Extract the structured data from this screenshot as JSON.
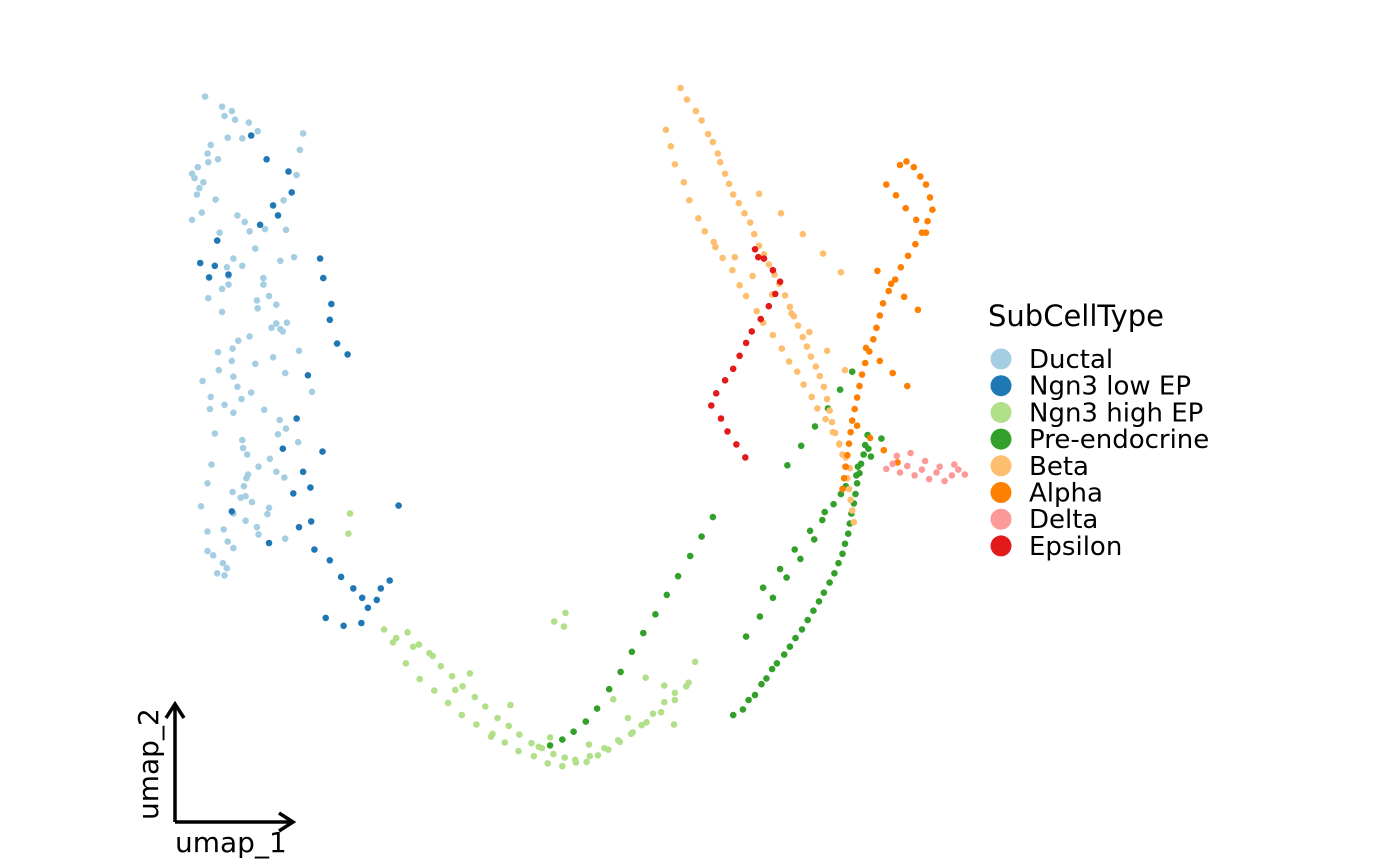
{
  "chart_data": {
    "type": "scatter",
    "title": "",
    "xlabel": "umap_1",
    "ylabel": "umap_2",
    "xlim": [
      0,
      100
    ],
    "ylim": [
      0,
      100
    ],
    "grid": false,
    "legend": {
      "title": "SubCellType",
      "placement": "right"
    },
    "series": [
      {
        "name": "Ductal",
        "color": "#A6CEE3",
        "x": [
          10.5,
          12.6,
          13.8,
          12.9,
          14.2,
          15.9,
          17.0,
          15.1,
          13.3,
          11.2,
          10.8,
          12.1,
          10.9,
          9.6,
          8.9,
          9.2,
          10.3,
          9.8,
          9.5,
          11.8,
          10.1,
          8.9,
          14.5,
          12.3,
          16.0,
          15.4,
          17.9,
          16.7,
          14.0,
          13.2,
          13.4,
          17.7,
          19.8,
          15.1,
          13.4,
          12.6,
          10.9,
          16.9,
          12.6,
          19.3,
          20.6,
          19.8,
          20.1,
          16.0,
          14.6,
          13.9,
          12.1,
          13.8,
          16.7,
          12.2,
          14.0,
          10.2,
          14.5,
          16.2,
          15.0,
          11.2,
          12.9,
          14.0,
          17.8,
          19.7,
          20.5,
          19.5,
          22.0,
          15.1,
          15.2,
          15.7,
          18.5,
          17.1,
          19.3,
          20.3,
          15.6,
          15.3,
          13.9,
          14.9,
          16.3,
          18.4,
          18.2,
          14.0,
          15.5,
          16.9,
          12.8,
          17.1,
          13.3,
          20.4,
          14.0,
          11.5,
          12.7,
          13.2,
          12.0,
          12.9,
          10.8,
          10.8,
          10.0,
          10.8,
          11.3,
          11.7,
          11.1,
          18.9,
          19.3,
          18.4,
          17.7,
          21.5,
          20.5,
          20.2,
          21.8,
          22.2,
          22.6,
          23.7,
          20.4,
          22.1,
          18.7,
          17.0,
          15.8,
          15.5
        ],
        "y": [
          96.3,
          94.9,
          94.3,
          93.6,
          93.1,
          92.7,
          91.5,
          90.5,
          90.6,
          89.6,
          88.4,
          87.6,
          87.2,
          86.5,
          85.6,
          85.0,
          84.4,
          83.6,
          82.7,
          82.0,
          80.2,
          79.2,
          79.8,
          77.4,
          77.6,
          78.9,
          77.9,
          75.2,
          73.8,
          72.6,
          71.4,
          71.1,
          73.5,
          72.8,
          70.2,
          69.6,
          68.3,
          68.0,
          66.4,
          67.4,
          64.9,
          64.0,
          63.7,
          63.0,
          62.4,
          61.3,
          60.8,
          59.6,
          59.2,
          58.3,
          57.4,
          56.8,
          56.0,
          55.2,
          54.3,
          54.6,
          53.5,
          52.4,
          52.8,
          51.4,
          50.2,
          49.4,
          48.3,
          48.6,
          47.5,
          46.6,
          46.0,
          44.9,
          44.2,
          43.4,
          43.3,
          42.2,
          41.4,
          40.6,
          40.0,
          39.2,
          38.3,
          38.4,
          37.4,
          36.5,
          36.2,
          35.5,
          34.5,
          34.9,
          33.6,
          32.6,
          31.5,
          30.8,
          30.1,
          29.8,
          33.2,
          35.9,
          39.4,
          42.6,
          45.2,
          49.5,
          52.9,
          60.1,
          64.8,
          68.6,
          70.2,
          74.0,
          77.8,
          81.9,
          85.4,
          88.9,
          91.2,
          55.3,
          57.9,
          61.0,
          64.2,
          66.9,
          43.8,
          40.8
        ]
      },
      {
        "name": "Ngn3 low EP",
        "color": "#1F78B4",
        "x": [
          16.2,
          18.1,
          20.8,
          18.9,
          9.9,
          11.7,
          13.4,
          12.0,
          11.0,
          24.7,
          25.1,
          25.9,
          26.8,
          23.2,
          21.8,
          20.1,
          22.6,
          21.4,
          23.6,
          13.8,
          22.1,
          18.4,
          24.0,
          25.9,
          27.3,
          28.8,
          29.9,
          30.6,
          31.7,
          32.2,
          33.3,
          25.4,
          27.6,
          29.8,
          34.4,
          28.1,
          23.5,
          25.0,
          17.3,
          19.5,
          21.2,
          26.1
        ],
        "y": [
          90.9,
          87.6,
          85.9,
          81.2,
          73.2,
          72.8,
          71.6,
          76.3,
          71.2,
          73.8,
          71.1,
          65.3,
          62.0,
          57.6,
          51.6,
          47.4,
          44.2,
          41.2,
          37.3,
          38.7,
          36.5,
          34.3,
          33.4,
          31.9,
          29.6,
          28.0,
          26.7,
          25.3,
          26.4,
          28.0,
          29.1,
          23.9,
          22.8,
          23.2,
          39.5,
          60.5,
          42.0,
          47.0,
          78.5,
          79.8,
          83.0,
          67.5
        ]
      },
      {
        "name": "Ngn3 high EP",
        "color": "#B2DF8A",
        "x": [
          32.6,
          34.1,
          35.5,
          36.9,
          38.2,
          39.6,
          41.0,
          42.3,
          43.8,
          45.1,
          46.6,
          48.0,
          49.3,
          50.8,
          52.1,
          53.5,
          54.9,
          56.2,
          57.6,
          59.0,
          60.3,
          61.7,
          63.1,
          64.4,
          65.8,
          67.2,
          68.5,
          69.9,
          33.7,
          35.3,
          37.0,
          38.8,
          40.5,
          42.2,
          44.0,
          45.8,
          47.5,
          49.2,
          51.1,
          52.8,
          54.6,
          56.3,
          58.0,
          59.8,
          61.5,
          63.3,
          65.0,
          66.8,
          68.5,
          70.2,
          38.6,
          43.2,
          48.2,
          53.1,
          57.9,
          62.7,
          67.2,
          71.0,
          36.2,
          28.4,
          28.2,
          55.0,
          54.8,
          53.6,
          41.4,
          46.0,
          51.7,
          60.9,
          64.9,
          68.4
        ],
        "y": [
          22.3,
          21.1,
          21.9,
          20.2,
          19.0,
          17.2,
          15.8,
          14.4,
          12.9,
          11.6,
          10.0,
          8.9,
          7.7,
          6.5,
          5.8,
          5.0,
          4.5,
          4.2,
          3.9,
          4.8,
          5.6,
          6.7,
          7.8,
          9.0,
          10.6,
          12.2,
          13.5,
          14.4,
          20.5,
          17.6,
          15.4,
          13.8,
          12.1,
          10.4,
          9.1,
          7.4,
          6.6,
          5.4,
          4.7,
          3.7,
          3.3,
          3.8,
          4.7,
          5.8,
          6.9,
          8.0,
          9.4,
          10.8,
          12.5,
          14.9,
          18.6,
          16.2,
          11.8,
          7.3,
          6.3,
          10.0,
          14.5,
          17.8,
          19.9,
          38.4,
          35.6,
          24.6,
          22.7,
          23.4,
          13.9,
          7.8,
          6.0,
          12.6,
          15.6,
          9.1
        ]
      },
      {
        "name": "Pre-endocrine",
        "color": "#33A02C",
        "x": [
          75.7,
          76.9,
          77.6,
          78.4,
          79.2,
          79.8,
          80.5,
          81.1,
          82.0,
          82.7,
          83.4,
          84.2,
          84.9,
          85.6,
          86.3,
          86.9,
          87.6,
          88.2,
          88.7,
          89.2,
          89.5,
          89.9,
          90.1,
          90.3,
          90.6,
          90.8,
          91.0,
          91.3,
          91.5,
          91.8,
          92.0,
          92.3,
          73.2,
          71.8,
          70.4,
          68.9,
          67.5,
          66.1,
          64.6,
          63.2,
          61.8,
          60.4,
          58.9,
          57.5,
          56.0,
          54.6,
          53.1,
          82.4,
          84.1,
          85.8,
          87.4,
          88.9,
          90.4,
          86.7,
          88.1,
          89.6,
          91.1,
          92.4,
          79.4,
          81.5,
          83.3,
          85.2,
          87.0,
          89.0,
          90.9,
          92.7,
          94.0,
          77.3,
          79.0,
          80.6,
          82.3,
          84.0,
          85.7
        ],
        "y": [
          10.4,
          11.2,
          12.5,
          13.2,
          14.7,
          15.5,
          16.8,
          17.6,
          18.8,
          19.9,
          21.1,
          22.3,
          23.6,
          24.9,
          26.2,
          27.4,
          28.8,
          30.1,
          31.5,
          32.8,
          34.2,
          35.6,
          37.0,
          38.4,
          39.8,
          41.1,
          42.6,
          44.0,
          45.3,
          46.6,
          47.9,
          49.3,
          37.9,
          35.2,
          32.5,
          29.7,
          27.1,
          24.4,
          21.8,
          19.2,
          16.4,
          14.0,
          11.3,
          9.5,
          8.1,
          7.0,
          6.2,
          45.1,
          47.8,
          50.5,
          53.0,
          55.6,
          58.1,
          37.5,
          39.7,
          42.2,
          44.9,
          47.4,
          28.1,
          30.7,
          33.4,
          36.0,
          38.6,
          41.1,
          43.7,
          46.3,
          48.8,
          21.3,
          24.1,
          26.7,
          29.5,
          32.1,
          34.8
        ]
      },
      {
        "name": "Beta",
        "color": "#FDBF6F",
        "x": [
          69.2,
          70.0,
          71.1,
          71.8,
          72.6,
          73.2,
          73.8,
          74.1,
          74.7,
          75.2,
          75.7,
          76.4,
          77.1,
          77.8,
          78.3,
          78.9,
          79.5,
          80.1,
          80.8,
          81.4,
          82.1,
          82.7,
          83.2,
          83.7,
          84.3,
          84.8,
          85.3,
          85.9,
          86.4,
          86.9,
          87.3,
          87.6,
          87.9,
          88.3,
          88.8,
          89.2,
          89.5,
          89.8,
          90.0,
          90.2,
          90.4,
          90.6,
          67.4,
          68.0,
          68.5,
          69.6,
          70.3,
          71.4,
          72.2,
          73.5,
          74.4,
          75.6,
          76.5,
          77.3,
          78.6,
          79.4,
          80.6,
          81.7,
          82.6,
          83.6,
          84.4,
          85.4,
          86.1,
          87.1,
          88.0,
          88.8,
          89.6,
          90.1,
          78.9,
          81.6,
          84.3,
          86.8,
          89.0,
          73.3,
          75.9,
          78.1,
          80.5,
          82.9,
          85.1,
          87.3,
          89.5
        ],
        "y": [
          97.5,
          95.9,
          94.3,
          93.0,
          91.1,
          90.0,
          88.4,
          87.2,
          85.6,
          84.2,
          82.7,
          81.5,
          80.1,
          78.8,
          77.2,
          75.6,
          74.4,
          73.0,
          71.6,
          70.3,
          68.7,
          67.1,
          65.8,
          64.5,
          62.9,
          61.6,
          60.2,
          58.8,
          57.5,
          56.0,
          54.3,
          52.7,
          51.1,
          49.6,
          48.1,
          46.6,
          44.9,
          43.3,
          41.8,
          40.3,
          38.8,
          37.2,
          91.7,
          89.4,
          86.9,
          84.4,
          81.9,
          79.4,
          77.6,
          75.4,
          73.9,
          72.2,
          70.1,
          68.6,
          66.5,
          64.9,
          63.2,
          61.3,
          59.5,
          58.1,
          56.3,
          54.6,
          53.0,
          51.5,
          49.7,
          48.0,
          46.2,
          44.7,
          82.8,
          80.1,
          77.2,
          74.5,
          71.9,
          76.1,
          74.0,
          71.4,
          68.8,
          66.2,
          63.6,
          61.0,
          58.3
        ]
      },
      {
        "name": "Alpha",
        "color": "#FF7F00",
        "x": [
          96.3,
          97.1,
          98.0,
          98.8,
          99.5,
          100.0,
          100.3,
          99.7,
          99.0,
          98.2,
          97.3,
          96.4,
          95.7,
          94.9,
          94.2,
          93.8,
          93.4,
          93.0,
          92.5,
          92.0,
          91.6,
          91.3,
          91.0,
          90.7,
          90.4,
          90.2,
          90.0,
          89.8,
          89.6,
          89.4,
          89.2,
          94.6,
          95.8,
          97.0,
          98.3,
          99.5,
          93.5,
          95.2,
          96.8,
          98.5,
          92.1,
          93.8,
          95.4,
          97.2,
          91.0,
          92.6,
          94.3,
          96.0
        ],
        "y": [
          86.8,
          87.3,
          86.5,
          85.2,
          84.1,
          82.3,
          80.6,
          79.0,
          77.4,
          75.8,
          74.2,
          72.6,
          70.9,
          69.3,
          67.6,
          65.9,
          64.2,
          62.6,
          60.9,
          59.3,
          57.7,
          56.1,
          54.5,
          52.9,
          51.3,
          49.7,
          48.1,
          46.5,
          44.9,
          43.3,
          41.8,
          84.1,
          82.6,
          80.8,
          79.2,
          77.4,
          72.1,
          70.3,
          68.5,
          66.7,
          61.4,
          59.6,
          57.9,
          56.1,
          50.6,
          48.9,
          47.2,
          45.5
        ]
      },
      {
        "name": "Delta",
        "color": "#FB9A99",
        "x": [
          94.6,
          95.4,
          96.3,
          97.2,
          98.1,
          99.0,
          99.9,
          100.8,
          101.8,
          102.7,
          103.5,
          104.3,
          95.9,
          97.6,
          99.4,
          101.2,
          103.0
        ],
        "y": [
          44.6,
          45.3,
          44.1,
          45.0,
          43.7,
          44.5,
          43.2,
          44.1,
          42.9,
          43.7,
          44.5,
          43.8,
          46.4,
          46.8,
          45.7,
          44.9,
          45.2
        ],
        "note": ""
      },
      {
        "name": "Epsilon",
        "color": "#E31A1C",
        "x": [
          78.4,
          79.5,
          80.6,
          81.5,
          80.9,
          80.1,
          79.1,
          78.0,
          77.3,
          76.5,
          75.7,
          74.7,
          73.6,
          73.0,
          74.2,
          75.0,
          76.1,
          77.2,
          78.8
        ],
        "y": [
          75.1,
          73.8,
          72.2,
          70.6,
          68.9,
          67.2,
          65.4,
          63.7,
          62.1,
          60.3,
          58.5,
          56.9,
          55.1,
          53.4,
          51.6,
          49.8,
          48.0,
          46.2,
          74.0
        ]
      }
    ]
  }
}
